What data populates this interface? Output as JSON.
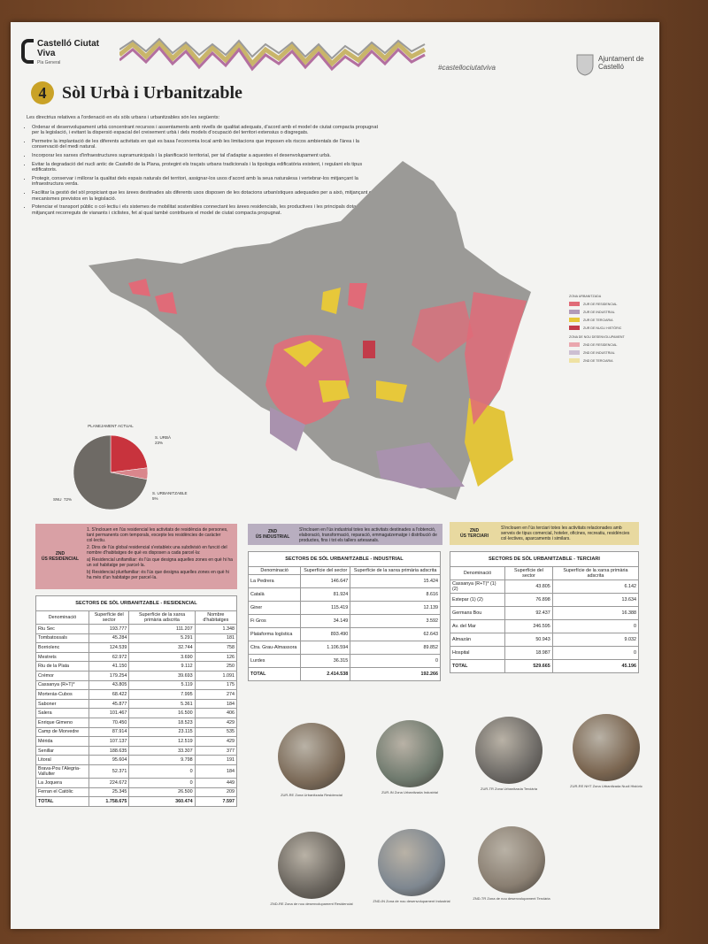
{
  "header": {
    "brand": "Castelló Ciutat Viva",
    "subbrand": "Pla General",
    "hashtag": "#castellociutatviva",
    "organization": "Ajuntament de Castelló"
  },
  "title": {
    "number": "4",
    "text": "Sòl Urbà i Urbanitzable"
  },
  "intro": {
    "lead": "Les directrius relatives a l'ordenació en els sòls urbans i urbanitzables són les següents:",
    "bullets": [
      "Ordenar el desenvolupament urbà concentrant recursos i assentaments amb nivells de qualitat adequats, d'acord amb el model de ciutat compacta propugnat per la legislació, i evitant la dispersió espacial del creixement urbà i dels models d'ocupació del territori extensius o disgregats.",
      "Permetre la implantació de les diferents activitats en què es basa l'economia local amb les limitacions que imposen els riscos ambientals de l'àrea i la conservació del medi natural.",
      "Incorporar les xarxes d'infraestructures supramunicipals i la planificació territorial, per tal d'adaptar a aquestes el desenvolupament urbà.",
      "Evitar la degradació del nucli antic de Castelló de la Plana, protegint els traçats urbans tradicionals i la tipologia edificatòria existent, i regulant els tipus edificatoris.",
      "Protegir, conservar i millorar la qualitat dels espais naturals del territori, assignar-los usos d'acord amb la seua naturalesa i vertebrar-los mitjançant la infraestructura verda.",
      "Facilitar la gestió del sòl propiciant que les àrees destinades als diferents usos disposen de les dotacions urbanístiques adequades per a això, mitjançant els mecanismes previstos en la legislació.",
      "Potenciar el transport públic o col·lectiu i els sistemes de mobilitat sostenibles connectant les àrees residencials, les productives i les principals dotacions mitjançant recorreguts de vianants i ciclistes, fet al qual també contribueix el model de ciutat compacta propugnat."
    ]
  },
  "map_legend": {
    "groups": [
      {
        "title": "ZONA URBANITZADA",
        "items": [
          {
            "label": "ZUR DE RESIDENCIAL",
            "color": "#e06b78"
          },
          {
            "label": "ZUR DE INDUSTRIAL",
            "color": "#b29bb8"
          },
          {
            "label": "ZUR DE TERCIARIA",
            "color": "#e7c83a"
          },
          {
            "label": "ZUR DE NUCLI HISTÒRIC",
            "color": "#c23c4a"
          }
        ]
      },
      {
        "title": "ZONA DE NOU DESENVOLUPAMENT",
        "items": [
          {
            "label": "ZND DE RESIDENCIAL",
            "color": "#eaa7ae"
          },
          {
            "label": "ZND DE INDUSTRIAL",
            "color": "#cdbfd2"
          },
          {
            "label": "ZND DE TERCIARIA",
            "color": "#efe2a3"
          }
        ]
      }
    ]
  },
  "pie": {
    "title": "PLANEJAMENT ACTUAL",
    "slices": [
      {
        "label": "S. URBÀ",
        "value": 23,
        "value_label": "23%",
        "color": "#c8333d"
      },
      {
        "label": "S. URBANITZABLE",
        "value": 5,
        "value_label": "5%",
        "color": "#d9868c"
      },
      {
        "label": "SNU",
        "value": 72,
        "value_label": "72%",
        "color": "#6e6a65"
      }
    ]
  },
  "zones": [
    {
      "code": "ZND",
      "name": "ÚS RESIDENCIAL",
      "text": [
        "1. S'inclouen en l'ús residencial les activitats de residència de persones, tant permanents com temporals, excepte les residències de caràcter col·lectiu.",
        "2. Dins de l'ús global residencial s'estableix una subdivisió en funció del nombre d'habitatges de què es disposen a cada parcel·la:",
        "a) Residencial unifamiliar: és l'ús que designa aquelles zones en què hi ha un sol habitatge per parcel·la.",
        "b) Residencial plurifamiliar: és l'ús que designa aquelles zones en què hi ha més d'un habitatge per parcel·la."
      ]
    },
    {
      "code": "ZND",
      "name": "ÚS INDUSTRIAL",
      "text": [
        "S'inclouen en l'ús industrial totes les activitats destinades a l'obtenció, elaboració, transformació, reparació, emmagatzematge i distribució de productes, fins i tot els tallers artesanals."
      ]
    },
    {
      "code": "ZND",
      "name": "ÚS TERCIARI",
      "text": [
        "S'inclouen en l'ús terciari totes les activitats relacionades amb serveis de tipus comercial, hoteler, oficines, recreatiu, residències col·lectives, aparcaments i similars."
      ]
    }
  ],
  "tables": [
    {
      "title": "SECTORS DE SÒL URBANITZABLE - RESIDENCIAL",
      "headers": [
        "Denominació",
        "Superfície del sector",
        "Superfície de la xarxa primària adscrita",
        "Nombre d'habitatges"
      ],
      "rows": [
        [
          "Riu Sec",
          "193.777",
          "111.207",
          "1.348"
        ],
        [
          "Tombatossals",
          "45.284",
          "5.291",
          "181"
        ],
        [
          "Borriolenc",
          "124.539",
          "32.744",
          "758"
        ],
        [
          "Mestrets",
          "62.972",
          "3.690",
          "126"
        ],
        [
          "Riu de la Plata",
          "41.150",
          "9.112",
          "250"
        ],
        [
          "Crémor",
          "179.254",
          "39.693",
          "1.091"
        ],
        [
          "Cassanya (R+T)*",
          "43.805",
          "5.119",
          "175"
        ],
        [
          "Morterás-Cubos",
          "68.422",
          "7.995",
          "274"
        ],
        [
          "Saboner",
          "45.877",
          "5.361",
          "184"
        ],
        [
          "Salera",
          "101.467",
          "16.500",
          "406"
        ],
        [
          "Enrique Gimeno",
          "70.450",
          "18.523",
          "429"
        ],
        [
          "Camp de Morvedre",
          "87.914",
          "23.115",
          "535"
        ],
        [
          "Mérida",
          "107.137",
          "12.519",
          "429"
        ],
        [
          "Senillar",
          "188.635",
          "33.307",
          "377"
        ],
        [
          "Litoral",
          "95.604",
          "9.798",
          "191"
        ],
        [
          "Brava-Pou l'Alegria-Vallulter",
          "52.371",
          "0",
          "184"
        ],
        [
          "La Joquera",
          "224.672",
          "0",
          "449"
        ],
        [
          "Ferran el Catòlic",
          "25.345",
          "26.500",
          "209"
        ]
      ],
      "total": [
        "TOTAL",
        "1.758.675",
        "360.474",
        "7.597"
      ]
    },
    {
      "title": "SECTORS DE SÒL URBANITZABLE - INDUSTRIAL",
      "headers": [
        "Denominació",
        "Superfície del sector",
        "Superfície de la xarxa primària adscrita"
      ],
      "rows": [
        [
          "La Pedrera",
          "146.647",
          "15.424"
        ],
        [
          "Català",
          "81.924",
          "8.616"
        ],
        [
          "Giner",
          "115.419",
          "12.139"
        ],
        [
          "Fi Gros",
          "34.149",
          "3.592"
        ],
        [
          "Plataforma logística",
          "893.490",
          "62.643"
        ],
        [
          "Ctra. Grau-Almassora",
          "1.106.594",
          "89.852"
        ],
        [
          "Lurdes",
          "36.315",
          "0"
        ]
      ],
      "total": [
        "TOTAL",
        "2.414.538",
        "192.266"
      ]
    },
    {
      "title": "SECTORS DE SÒL URBANITZABLE - TERCIARI",
      "headers": [
        "Denominació",
        "Superfície del sector",
        "Superfície de la xarxa primària adscrita"
      ],
      "rows": [
        [
          "Cassanya (R+T)* (1) (2)",
          "43.805",
          "6.142"
        ],
        [
          "Estepar (1) (2)",
          "76.898",
          "13.634"
        ],
        [
          "Germans Bou",
          "92.437",
          "16.388"
        ],
        [
          "Av. del Mar",
          "246.595",
          "0"
        ],
        [
          "Almazán",
          "50.943",
          "9.032"
        ],
        [
          "Hospital",
          "18.987",
          "0"
        ]
      ],
      "total": [
        "TOTAL",
        "529.665",
        "45.196"
      ]
    }
  ],
  "photos": [
    "ZUR-RE Zona Urbanitzada Residencial",
    "ZUR-IN Zona Urbanitzada Industrial",
    "ZUR-TR Zona Urbanitzada Terciària",
    "ZUR-RE NHT Zona Urbanitzada Nucli Històric",
    "ZND-RE Zona de nou desenvolupament Residencial",
    "ZND-IN Zona de nou desenvolupament Industrial",
    "ZND-TR Zona de nou desenvolupament Terciària"
  ]
}
